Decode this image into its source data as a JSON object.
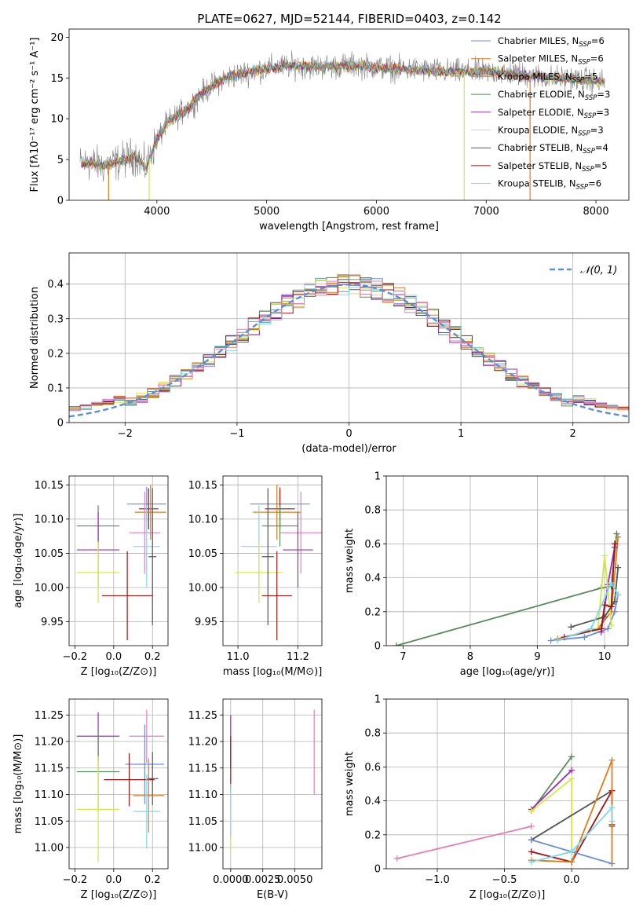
{
  "figure_title": "PLATE=0627, MJD=52144, FIBERID=0403, z=0.142",
  "colors": {
    "chabrier_miles": "#6b8fd6",
    "salpeter_miles": "#e07b1a",
    "kroupa_miles": "#d98620",
    "chabrier_elodie": "#5a8a5a",
    "salpeter_elodie": "#9a2fb0",
    "kroupa_elodie": "#d4e84a",
    "chabrier_stelib": "#555555",
    "salpeter_stelib": "#a01515",
    "kroupa_stelib": "#7fd8e8",
    "pink": "#e37fb8",
    "grid": "#b0b0b0",
    "normal_curve": "#5b8fd6"
  },
  "chart_data": [
    {
      "id": "spectrum",
      "type": "line",
      "title": "PLATE=0627, MJD=52144, FIBERID=0403, z=0.142",
      "xlabel": "wavelength [Angstrom, rest frame]",
      "ylabel": "Flux [fλ10⁻¹⁷ erg cm⁻² s⁻¹ A⁻¹]",
      "xlim": [
        3200,
        8300
      ],
      "ylim": [
        0,
        21
      ],
      "xticks": [
        4000,
        5000,
        6000,
        7000,
        8000
      ],
      "yticks": [
        0,
        5,
        10,
        15,
        20
      ],
      "grid": false,
      "legend_position": "top-right",
      "legend": [
        {
          "label": "Chabrier MILES, N",
          "sub": "SSP",
          "tail": "=6",
          "color": "#6b8fd6"
        },
        {
          "label": "Salpeter MILES, N",
          "sub": "SSP",
          "tail": "=6",
          "color": "#e07b1a"
        },
        {
          "label": "Kroupa MILES, N",
          "sub": "SSP",
          "tail": "=5",
          "color": "#d98620"
        },
        {
          "label": "Chabrier ELODIE, N",
          "sub": "SSP",
          "tail": "=3",
          "color": "#5a8a5a"
        },
        {
          "label": "Salpeter ELODIE, N",
          "sub": "SSP",
          "tail": "=3",
          "color": "#9a2fb0"
        },
        {
          "label": "Kroupa ELODIE, N",
          "sub": "SSP",
          "tail": "=3",
          "color": "#d4e84a"
        },
        {
          "label": "Chabrier STELIB, N",
          "sub": "SSP",
          "tail": "=4",
          "color": "#555555"
        },
        {
          "label": "Salpeter STELIB, N",
          "sub": "SSP",
          "tail": "=5",
          "color": "#a01515"
        },
        {
          "label": "Kroupa STELIB, N",
          "sub": "SSP",
          "tail": "=6",
          "color": "#7fd8e8"
        }
      ],
      "continuum": {
        "x": [
          3300,
          3400,
          3500,
          3600,
          3700,
          3800,
          3900,
          4000,
          4100,
          4200,
          4300,
          4400,
          4500,
          4600,
          4700,
          4800,
          4900,
          5000,
          5200,
          5400,
          5600,
          5800,
          6000,
          6200,
          6400,
          6600,
          6800,
          7000,
          7200,
          7400,
          7600,
          7800,
          8000,
          8080
        ],
        "y": [
          4.5,
          4.6,
          4.2,
          4.5,
          5.0,
          5.5,
          4.0,
          7.5,
          9.5,
          10.5,
          11.5,
          13.0,
          14.0,
          14.8,
          15.3,
          15.6,
          15.9,
          16.2,
          16.5,
          16.4,
          16.4,
          16.6,
          16.3,
          16.1,
          16.0,
          15.8,
          15.7,
          15.8,
          15.6,
          15.3,
          15.0,
          14.9,
          14.6,
          14.5
        ]
      },
      "dips": [
        {
          "x": 3560,
          "depth": 0,
          "color": "#e07b1a"
        },
        {
          "x": 3930,
          "depth": 0,
          "color": "#d4e84a"
        },
        {
          "x": 6800,
          "depth": 0,
          "color": "#d4e84a"
        },
        {
          "x": 7400,
          "depth": 0,
          "color": "#e07b1a"
        }
      ]
    },
    {
      "id": "residuals",
      "type": "histogram",
      "xlabel": "(data-model)/error",
      "ylabel": "Normed distribution",
      "xlim": [
        -2.5,
        2.5
      ],
      "ylim": [
        0,
        0.49
      ],
      "xticks": [
        -2,
        -1,
        0,
        1,
        2
      ],
      "yticks": [
        0.0,
        0.1,
        0.2,
        0.3,
        0.4
      ],
      "grid": true,
      "bin_width": 0.1,
      "legend_position": "top-right",
      "legend": [
        {
          "label": "𝒩(0, 1)",
          "style": "dashed",
          "color": "#5b8fd6"
        }
      ]
    },
    {
      "id": "age_vs_Z",
      "type": "errorbar",
      "xlabel": "Z [log₁₀(Z/Z⊙)]",
      "ylabel": "age  [log₁₀(age/yr)]",
      "xlim": [
        -0.23,
        0.28
      ],
      "ylim": [
        9.915,
        10.163
      ],
      "xticks": [
        -0.2,
        0.0,
        0.2
      ],
      "xticklabels": [
        "−0.2",
        "0.0",
        "0.2"
      ],
      "yticks": [
        9.95,
        10.0,
        10.05,
        10.1,
        10.15
      ],
      "yticklabels": [
        "9.95",
        "10.00",
        "10.05",
        "10.10",
        "10.15"
      ],
      "grid": true,
      "points": [
        {
          "x": -0.08,
          "y": 10.09,
          "xerr": 0.11,
          "yerr": 0.03,
          "color": "#5a8a5a"
        },
        {
          "x": -0.08,
          "y": 10.055,
          "xerr": 0.11,
          "yerr": 0.055,
          "color": "#9a2fb0"
        },
        {
          "x": -0.08,
          "y": 10.022,
          "xerr": 0.11,
          "yerr": 0.045,
          "color": "#d4e84a"
        },
        {
          "x": 0.17,
          "y": 10.122,
          "xerr": 0.1,
          "yerr": 0.025,
          "color": "#6b8fd6"
        },
        {
          "x": 0.18,
          "y": 10.115,
          "xerr": 0.05,
          "yerr": 0.03,
          "color": "#a01515"
        },
        {
          "x": 0.19,
          "y": 10.11,
          "xerr": 0.08,
          "yerr": 0.04,
          "color": "#e07b1a"
        },
        {
          "x": 0.16,
          "y": 10.08,
          "xerr": 0.08,
          "yerr": 0.06,
          "color": "#e37fb8"
        },
        {
          "x": 0.17,
          "y": 10.06,
          "xerr": 0.07,
          "yerr": 0.06,
          "color": "#7fd8e8"
        },
        {
          "x": 0.2,
          "y": 10.045,
          "xerr": 0.02,
          "yerr": 0.1,
          "color": "#555555"
        },
        {
          "x": 0.07,
          "y": 9.988,
          "xerr": 0.13,
          "yerr": 0.065,
          "color": "#a01515"
        }
      ]
    },
    {
      "id": "age_vs_mass",
      "type": "errorbar",
      "xlabel": "mass [log₁₀(M/M⊙)]",
      "ylabel": "",
      "xlim": [
        10.95,
        11.28
      ],
      "ylim": [
        9.915,
        10.163
      ],
      "xticks": [
        11.0,
        11.2
      ],
      "xticklabels": [
        "11.0",
        "11.2"
      ],
      "yticks": [
        9.95,
        10.0,
        10.05,
        10.1,
        10.15
      ],
      "yticklabels": [
        "9.95",
        "10.00",
        "10.05",
        "10.10",
        "10.15"
      ],
      "grid": true,
      "points": [
        {
          "x": 11.14,
          "y": 10.122,
          "xerr": 0.1,
          "yerr": 0.025,
          "color": "#6b8fd6"
        },
        {
          "x": 11.14,
          "y": 10.115,
          "xerr": 0.05,
          "yerr": 0.03,
          "color": "#a01515"
        },
        {
          "x": 11.13,
          "y": 10.11,
          "xerr": 0.08,
          "yerr": 0.04,
          "color": "#e07b1a"
        },
        {
          "x": 11.21,
          "y": 10.08,
          "xerr": 0.07,
          "yerr": 0.06,
          "color": "#e37fb8"
        },
        {
          "x": 11.14,
          "y": 10.09,
          "xerr": 0.06,
          "yerr": 0.03,
          "color": "#5a8a5a"
        },
        {
          "x": 11.2,
          "y": 10.055,
          "xerr": 0.05,
          "yerr": 0.055,
          "color": "#9a2fb0"
        },
        {
          "x": 11.07,
          "y": 10.06,
          "xerr": 0.06,
          "yerr": 0.06,
          "color": "#7fd8e8"
        },
        {
          "x": 11.07,
          "y": 10.022,
          "xerr": 0.08,
          "yerr": 0.045,
          "color": "#d4e84a"
        },
        {
          "x": 11.1,
          "y": 10.045,
          "xerr": 0.02,
          "yerr": 0.1,
          "color": "#555555"
        },
        {
          "x": 11.13,
          "y": 9.988,
          "xerr": 0.05,
          "yerr": 0.065,
          "color": "#a01515"
        }
      ]
    },
    {
      "id": "weight_vs_age",
      "type": "line",
      "xlabel": "age  [log₁₀(age/yr)]",
      "ylabel": "mass weight",
      "xlim": [
        6.75,
        10.35
      ],
      "ylim": [
        0,
        1.0
      ],
      "xticks": [
        7,
        8,
        9,
        10
      ],
      "yticks": [
        0.0,
        0.2,
        0.4,
        0.6,
        0.8,
        1.0
      ],
      "grid": true,
      "series": [
        {
          "color": "#5a8a5a",
          "x": [
            6.9,
            9.95,
            10.1,
            10.18
          ],
          "y": [
            0.0,
            0.34,
            0.35,
            0.66
          ]
        },
        {
          "color": "#6b8fd6",
          "x": [
            9.2,
            9.7,
            10.05,
            10.15,
            10.2
          ],
          "y": [
            0.03,
            0.05,
            0.1,
            0.2,
            0.3
          ]
        },
        {
          "color": "#e07b1a",
          "x": [
            9.3,
            9.9,
            10.1,
            10.2
          ],
          "y": [
            0.04,
            0.1,
            0.2,
            0.64
          ]
        },
        {
          "color": "#9a2fb0",
          "x": [
            9.95,
            10.05,
            10.15
          ],
          "y": [
            0.08,
            0.36,
            0.58
          ]
        },
        {
          "color": "#d4e84a",
          "x": [
            9.9,
            10.0,
            10.1
          ],
          "y": [
            0.1,
            0.53,
            0.12
          ]
        },
        {
          "color": "#555555",
          "x": [
            9.5,
            10.0,
            10.15,
            10.2
          ],
          "y": [
            0.11,
            0.17,
            0.26,
            0.46
          ]
        },
        {
          "color": "#a01515",
          "x": [
            9.4,
            9.95,
            10.0,
            10.1,
            10.15
          ],
          "y": [
            0.05,
            0.1,
            0.24,
            0.23,
            0.6
          ]
        },
        {
          "color": "#7fd8e8",
          "x": [
            9.3,
            9.8,
            10.1,
            10.2
          ],
          "y": [
            0.03,
            0.1,
            0.37,
            0.3
          ]
        }
      ]
    },
    {
      "id": "mass_vs_Z",
      "type": "errorbar",
      "xlabel": "Z [log₁₀(Z/Z⊙)]",
      "ylabel": "mass [log₁₀(M/M⊙)]",
      "xlim": [
        -0.23,
        0.28
      ],
      "ylim": [
        10.96,
        11.28
      ],
      "xticks": [
        -0.2,
        0.0,
        0.2
      ],
      "xticklabels": [
        "−0.2",
        "0.0",
        "0.2"
      ],
      "yticks": [
        11.0,
        11.05,
        11.1,
        11.15,
        11.2,
        11.25
      ],
      "yticklabels": [
        "11.00",
        "11.05",
        "11.10",
        "11.15",
        "11.20",
        "11.25"
      ],
      "grid": true,
      "points": [
        {
          "x": -0.08,
          "y": 11.21,
          "xerr": 0.11,
          "yerr": 0.045,
          "color": "#9a2fb0"
        },
        {
          "x": -0.08,
          "y": 11.143,
          "xerr": 0.11,
          "yerr": 0.075,
          "color": "#5a8a5a"
        },
        {
          "x": -0.08,
          "y": 11.072,
          "xerr": 0.11,
          "yerr": 0.1,
          "color": "#d4e84a"
        },
        {
          "x": 0.17,
          "y": 11.21,
          "xerr": 0.09,
          "yerr": 0.05,
          "color": "#e37fb8"
        },
        {
          "x": 0.16,
          "y": 11.157,
          "xerr": 0.1,
          "yerr": 0.075,
          "color": "#6b8fd6"
        },
        {
          "x": 0.2,
          "y": 11.13,
          "xerr": 0.03,
          "yerr": 0.05,
          "color": "#555555"
        },
        {
          "x": 0.08,
          "y": 11.128,
          "xerr": 0.13,
          "yerr": 0.05,
          "color": "#a01515"
        },
        {
          "x": 0.18,
          "y": 11.098,
          "xerr": 0.08,
          "yerr": 0.07,
          "color": "#e07b1a"
        },
        {
          "x": 0.17,
          "y": 11.068,
          "xerr": 0.07,
          "yerr": 0.07,
          "color": "#7fd8e8"
        }
      ]
    },
    {
      "id": "mass_vs_ebv",
      "type": "errorbar",
      "xlabel": "E(B-V)",
      "ylabel": "",
      "xlim": [
        -0.0006,
        0.0071
      ],
      "ylim": [
        10.96,
        11.28
      ],
      "xticks": [
        0.0,
        0.0025,
        0.005
      ],
      "xticklabels": [
        "0.0000",
        "0.0025",
        "0.0050"
      ],
      "yticks": [
        11.0,
        11.05,
        11.1,
        11.15,
        11.2,
        11.25
      ],
      "yticklabels": [
        "11.00",
        "11.05",
        "11.10",
        "11.15",
        "11.20",
        "11.25"
      ],
      "grid": true,
      "points": [
        {
          "x": 0.0,
          "y": 11.2,
          "xerr": 0.0,
          "yerr": 0.05,
          "color": "#9a2fb0"
        },
        {
          "x": 0.0,
          "y": 11.16,
          "xerr": 0.0,
          "yerr": 0.05,
          "color": "#a01515"
        },
        {
          "x": 0.0,
          "y": 11.05,
          "xerr": 0.0,
          "yerr": 0.06,
          "color": "#d4e84a"
        },
        {
          "x": 0.0,
          "y": 11.07,
          "xerr": 0.0,
          "yerr": 0.05,
          "color": "#7fd8e8"
        },
        {
          "x": 0.0065,
          "y": 11.18,
          "xerr": 0.0,
          "yerr": 0.08,
          "color": "#e37fb8"
        }
      ]
    },
    {
      "id": "weight_vs_Z",
      "type": "line",
      "xlabel": "Z [log₁₀(Z/Z⊙)]",
      "ylabel": "mass weight",
      "xlim": [
        -1.38,
        0.42
      ],
      "ylim": [
        0,
        1.0
      ],
      "xticks": [
        -1.0,
        -0.5,
        0.0
      ],
      "xticklabels": [
        "−1.0",
        "−0.5",
        "0.0"
      ],
      "yticks": [
        0.0,
        0.2,
        0.4,
        0.6,
        0.8,
        1.0
      ],
      "grid": true,
      "series": [
        {
          "color": "#5a8a5a",
          "x": [
            -0.3,
            0.0
          ],
          "y": [
            0.34,
            0.66
          ]
        },
        {
          "color": "#9a2fb0",
          "x": [
            -0.3,
            0.0
          ],
          "y": [
            0.35,
            0.58
          ]
        },
        {
          "color": "#d4e84a",
          "x": [
            -0.3,
            0.0,
            0.0
          ],
          "y": [
            0.34,
            0.53,
            0.1
          ]
        },
        {
          "color": "#e37fb8",
          "x": [
            -1.3,
            -0.3
          ],
          "y": [
            0.06,
            0.25
          ]
        },
        {
          "color": "#555555",
          "x": [
            -0.3,
            0.3,
            0.3
          ],
          "y": [
            0.17,
            0.46,
            0.25
          ]
        },
        {
          "color": "#a01515",
          "x": [
            -0.3,
            0.0,
            0.3,
            0.3
          ],
          "y": [
            0.1,
            0.04,
            0.46,
            0.26
          ]
        },
        {
          "color": "#e07b1a",
          "x": [
            -0.3,
            0.0,
            0.3,
            0.3
          ],
          "y": [
            0.05,
            0.04,
            0.64,
            0.03
          ]
        },
        {
          "color": "#6b8fd6",
          "x": [
            -0.3,
            0.0,
            0.3
          ],
          "y": [
            0.17,
            0.1,
            0.03
          ]
        },
        {
          "color": "#7fd8e8",
          "x": [
            -0.3,
            0.0,
            0.3,
            0.3
          ],
          "y": [
            0.04,
            0.1,
            0.36,
            0.28
          ]
        }
      ]
    }
  ]
}
